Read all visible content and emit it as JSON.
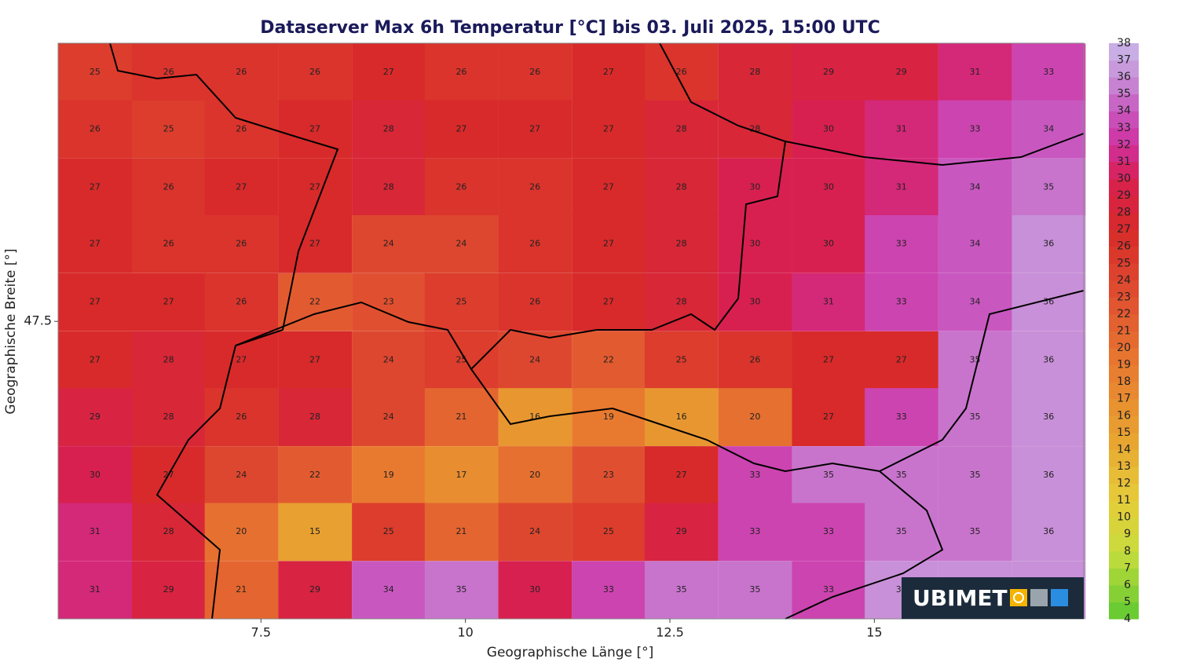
{
  "chart_data": {
    "type": "heatmap",
    "title": "Dataserver Max 6h Temperatur [°C] bis 03. Juli 2025, 15:00 UTC",
    "x_label": "Geographische Länge [°]",
    "y_label": "Geographische Breite [°]",
    "xlim": [
      5.02,
      17.56
    ],
    "ylim": [
      45.04,
      49.8
    ],
    "xticks": [
      7.5,
      10,
      12.5,
      15
    ],
    "yticks": [
      47.5
    ],
    "lon": [
      5.47,
      6.37,
      7.26,
      8.16,
      9.06,
      9.95,
      10.85,
      11.75,
      12.64,
      13.54,
      14.44,
      15.33,
      16.23,
      17.13
    ],
    "lat": [
      49.56,
      49.09,
      48.61,
      48.14,
      47.66,
      47.18,
      46.71,
      46.23,
      45.76,
      45.28
    ],
    "values": [
      [
        25,
        26,
        26,
        26,
        27,
        26,
        26,
        27,
        26,
        28,
        29,
        29,
        31,
        33
      ],
      [
        26,
        25,
        26,
        27,
        28,
        27,
        27,
        27,
        28,
        28,
        30,
        31,
        33,
        34
      ],
      [
        27,
        26,
        27,
        27,
        28,
        26,
        26,
        27,
        28,
        30,
        30,
        31,
        34,
        35
      ],
      [
        27,
        26,
        26,
        27,
        24,
        24,
        26,
        27,
        28,
        30,
        30,
        33,
        34,
        36
      ],
      [
        27,
        27,
        26,
        22,
        23,
        25,
        26,
        27,
        28,
        30,
        31,
        33,
        34,
        36
      ],
      [
        27,
        28,
        27,
        27,
        24,
        25,
        24,
        22,
        25,
        26,
        27,
        27,
        35,
        36
      ],
      [
        29,
        28,
        26,
        28,
        24,
        21,
        16,
        19,
        16,
        20,
        27,
        33,
        35,
        36
      ],
      [
        30,
        27,
        24,
        22,
        19,
        17,
        20,
        23,
        27,
        33,
        35,
        35,
        35,
        36
      ],
      [
        31,
        28,
        20,
        15,
        25,
        21,
        24,
        25,
        29,
        33,
        33,
        35,
        35,
        36
      ],
      [
        31,
        29,
        21,
        29,
        34,
        35,
        30,
        33,
        35,
        35,
        33,
        36,
        36,
        36
      ]
    ],
    "colorbar": {
      "lim": [
        4,
        38
      ],
      "ticks": [
        4,
        5,
        6,
        7,
        8,
        9,
        10,
        11,
        12,
        13,
        14,
        15,
        16,
        17,
        18,
        19,
        20,
        21,
        22,
        23,
        24,
        25,
        26,
        27,
        28,
        29,
        30,
        31,
        32,
        33,
        34,
        35,
        36,
        37,
        38
      ],
      "stops": [
        {
          "value": 4,
          "color": "#5ec832"
        },
        {
          "value": 8,
          "color": "#c8dc3c"
        },
        {
          "value": 11,
          "color": "#e6cc3a"
        },
        {
          "value": 15,
          "color": "#e8a030"
        },
        {
          "value": 19,
          "color": "#e87a30"
        },
        {
          "value": 23,
          "color": "#e05030"
        },
        {
          "value": 27,
          "color": "#d82a2a"
        },
        {
          "value": 30,
          "color": "#d82050"
        },
        {
          "value": 32,
          "color": "#d030a0"
        },
        {
          "value": 34,
          "color": "#c858c0"
        },
        {
          "value": 36,
          "color": "#c890d8"
        },
        {
          "value": 38,
          "color": "#c8b8e8"
        }
      ]
    },
    "logo": "UBIMET"
  }
}
